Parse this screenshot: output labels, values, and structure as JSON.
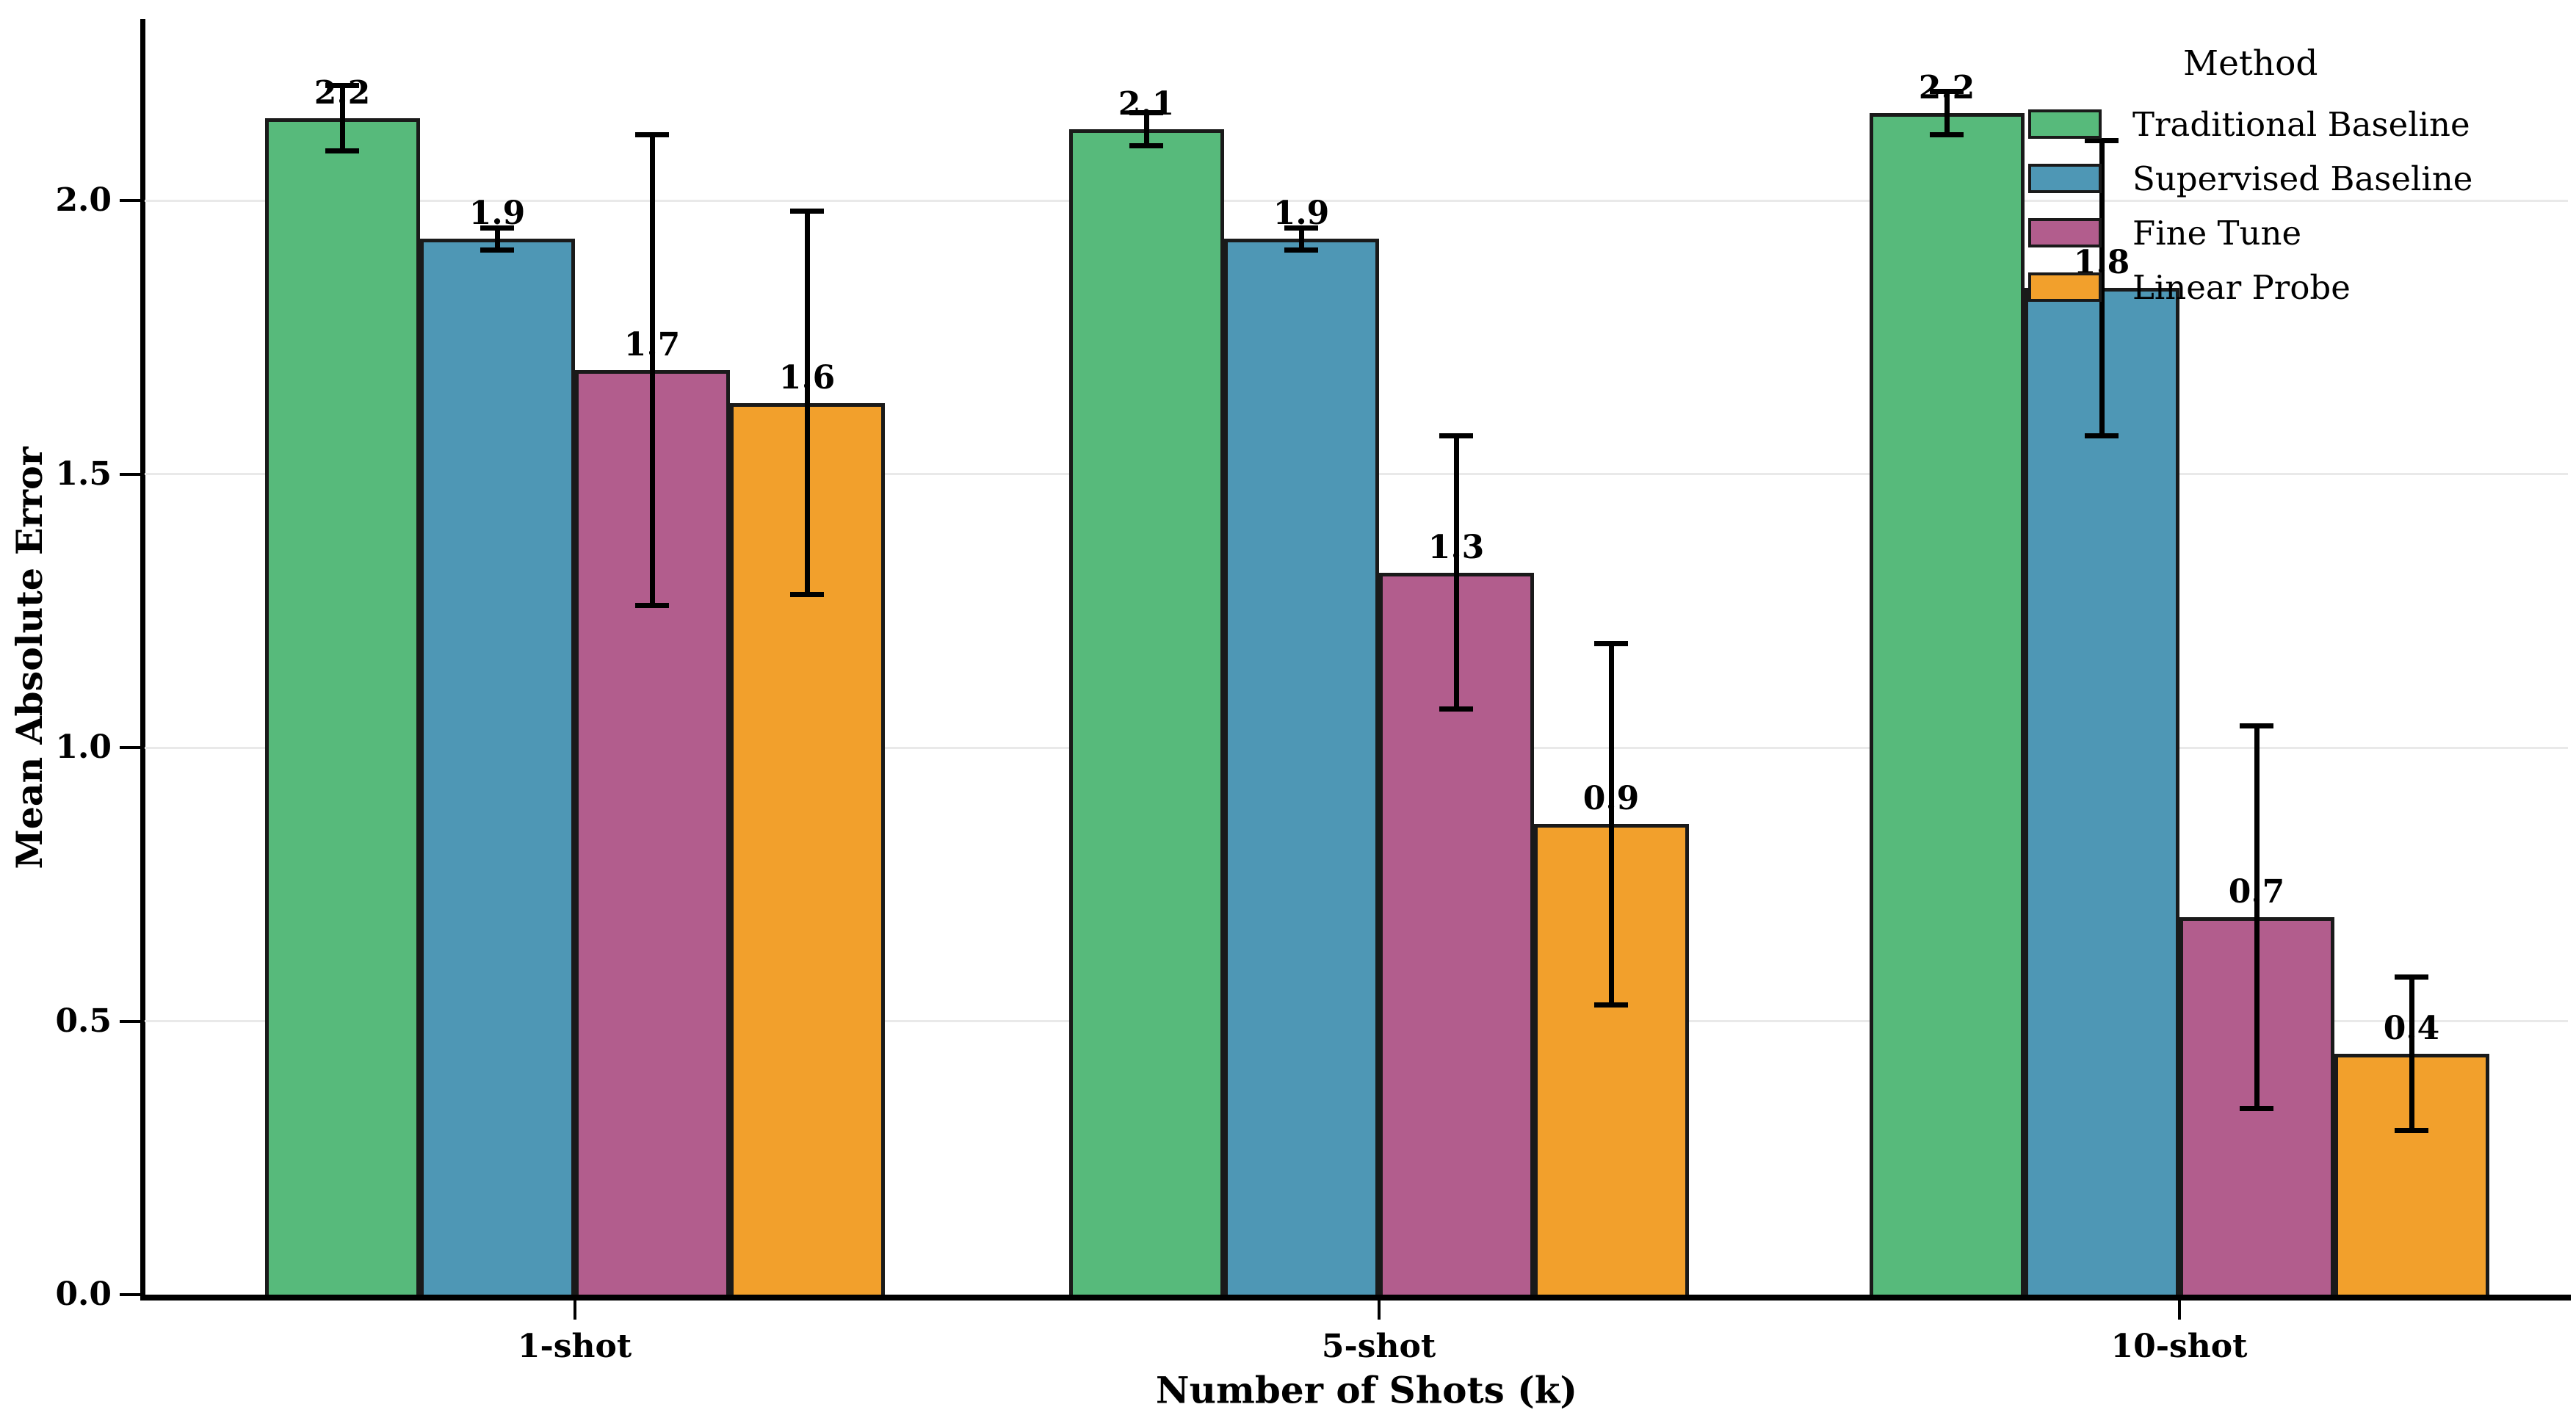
{
  "figure": {
    "background": "#ffffff"
  },
  "y_axis": {
    "title": "Mean Absolute Error"
  },
  "x_axis": {
    "title": "Number of Shots (k)"
  },
  "legend": {
    "title": "Method"
  },
  "chart_data": {
    "type": "bar",
    "title": "",
    "xlabel": "Number of Shots (k)",
    "ylabel": "Mean Absolute Error",
    "categories": [
      "1-shot",
      "5-shot",
      "10-shot"
    ],
    "series": [
      {
        "name": "Traditional Baseline",
        "color": "#57ba7b",
        "values": [
          2.15,
          2.13,
          2.16
        ],
        "errors": [
          0.06,
          0.03,
          0.04
        ],
        "bar_labels": [
          "2.2",
          "2.1",
          "2.2"
        ]
      },
      {
        "name": "Supervised Baseline",
        "color": "#4e97b5",
        "values": [
          1.93,
          1.93,
          1.84
        ],
        "errors": [
          0.02,
          0.02,
          0.27
        ],
        "bar_labels": [
          "1.9",
          "1.9",
          "1.8"
        ]
      },
      {
        "name": "Fine Tune",
        "color": "#b25d8d",
        "values": [
          1.69,
          1.32,
          0.69
        ],
        "errors": [
          0.43,
          0.25,
          0.35
        ],
        "bar_labels": [
          "1.7",
          "1.3",
          "0.7"
        ]
      },
      {
        "name": "Linear Probe",
        "color": "#f2a02c",
        "values": [
          1.63,
          0.86,
          0.44
        ],
        "errors": [
          0.35,
          0.33,
          0.14
        ],
        "bar_labels": [
          "1.6",
          "0.9",
          "0.4"
        ]
      }
    ],
    "ylim": [
      0,
      2.33
    ],
    "yticks": [
      0,
      0.5,
      1.0,
      1.5,
      2.0
    ],
    "ytick_labels": [
      "0.0",
      "0.5",
      "1.0",
      "1.5",
      "2.0"
    ],
    "grid": true,
    "legend_title": "Method",
    "legend_position": "upper right",
    "bar_edge_color": "#1a1a1a",
    "error_bar_color": "#000000",
    "grid_color": "#e9e9e9"
  }
}
